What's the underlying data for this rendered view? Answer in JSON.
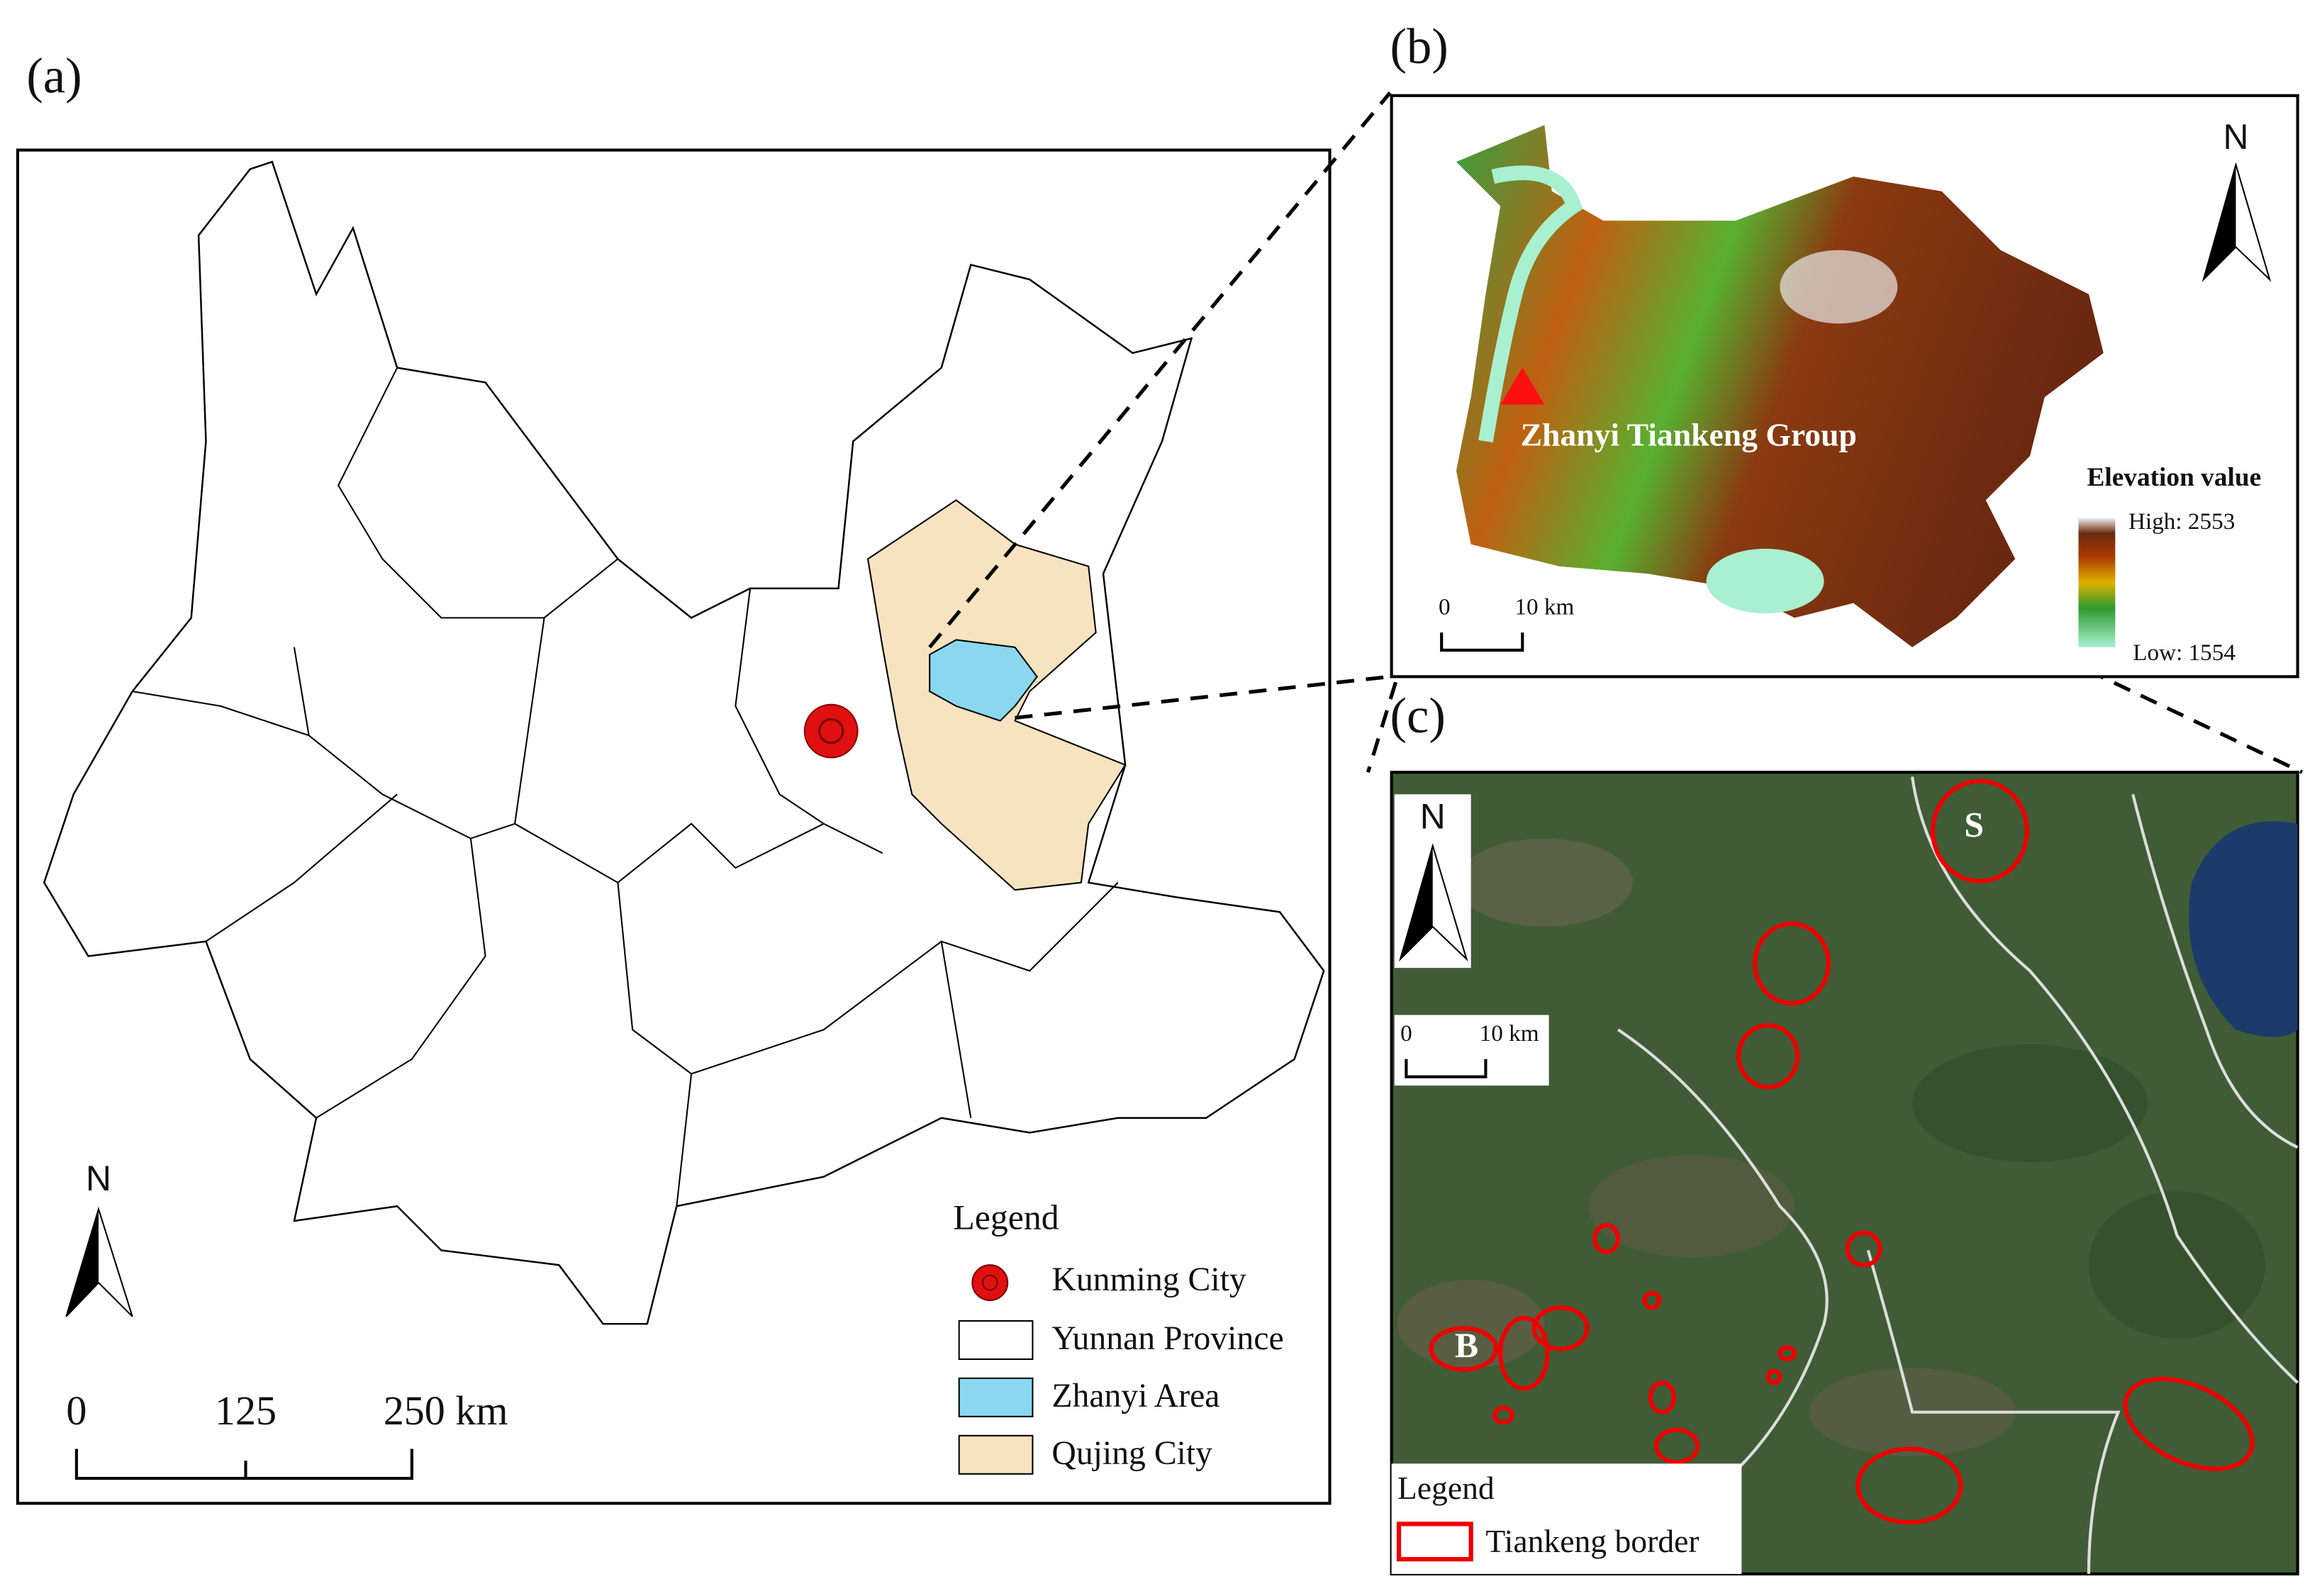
{
  "panels": {
    "a": {
      "label": "(a)",
      "north": "N",
      "scale": [
        "0",
        "125",
        "250 km"
      ],
      "legend": {
        "title": "Legend",
        "items": [
          "Kunming City",
          "Yunnan Province",
          "Zhanyi Area",
          "Qujing City"
        ]
      }
    },
    "b": {
      "label": "(b)",
      "north": "N",
      "scale": [
        "0",
        "10 km"
      ],
      "annotation": "Zhanyi Tiankeng Group",
      "elevation": {
        "title": "Elevation value",
        "high": "High: 2553",
        "low": "Low: 1554"
      }
    },
    "c": {
      "label": "(c)",
      "north": "N",
      "scale": [
        "0",
        "10 km"
      ],
      "markers": [
        "S",
        "B"
      ],
      "legend": {
        "title": "Legend",
        "items": [
          "Tiankeng border"
        ]
      }
    }
  }
}
